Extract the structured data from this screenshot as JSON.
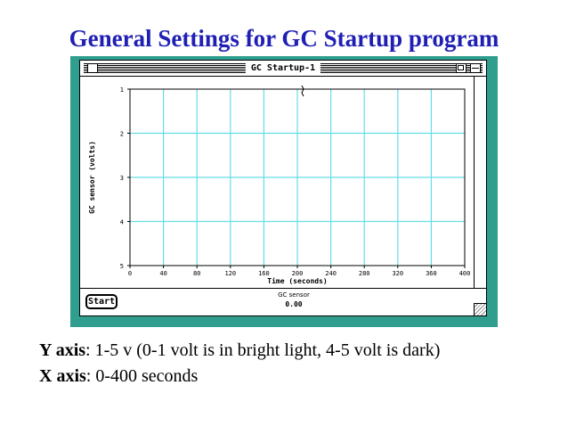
{
  "slide": {
    "title": "General Settings for GC Startup program"
  },
  "window": {
    "title": "GC Startup-1",
    "start_label": "Start",
    "sensor_label": "GC sensor",
    "sensor_value": "0.00"
  },
  "chart_data": {
    "type": "line",
    "xlabel": "Time (seconds)",
    "ylabel": "GC sensor (volts)",
    "xlim": [
      0,
      400
    ],
    "ylim": [
      1,
      5
    ],
    "y_inverted": true,
    "x_ticks": [
      0,
      40,
      80,
      120,
      160,
      200,
      240,
      280,
      320,
      360,
      400
    ],
    "y_ticks": [
      1,
      2,
      3,
      4,
      5
    ],
    "grid": true,
    "grid_color": "#66dde8",
    "series": []
  },
  "notes": {
    "y_label": "Y axis",
    "y_text": ": 1-5 v (0-1 volt is in bright light, 4-5 volt is dark)",
    "x_label": "X axis",
    "x_text": ": 0-400 seconds"
  }
}
